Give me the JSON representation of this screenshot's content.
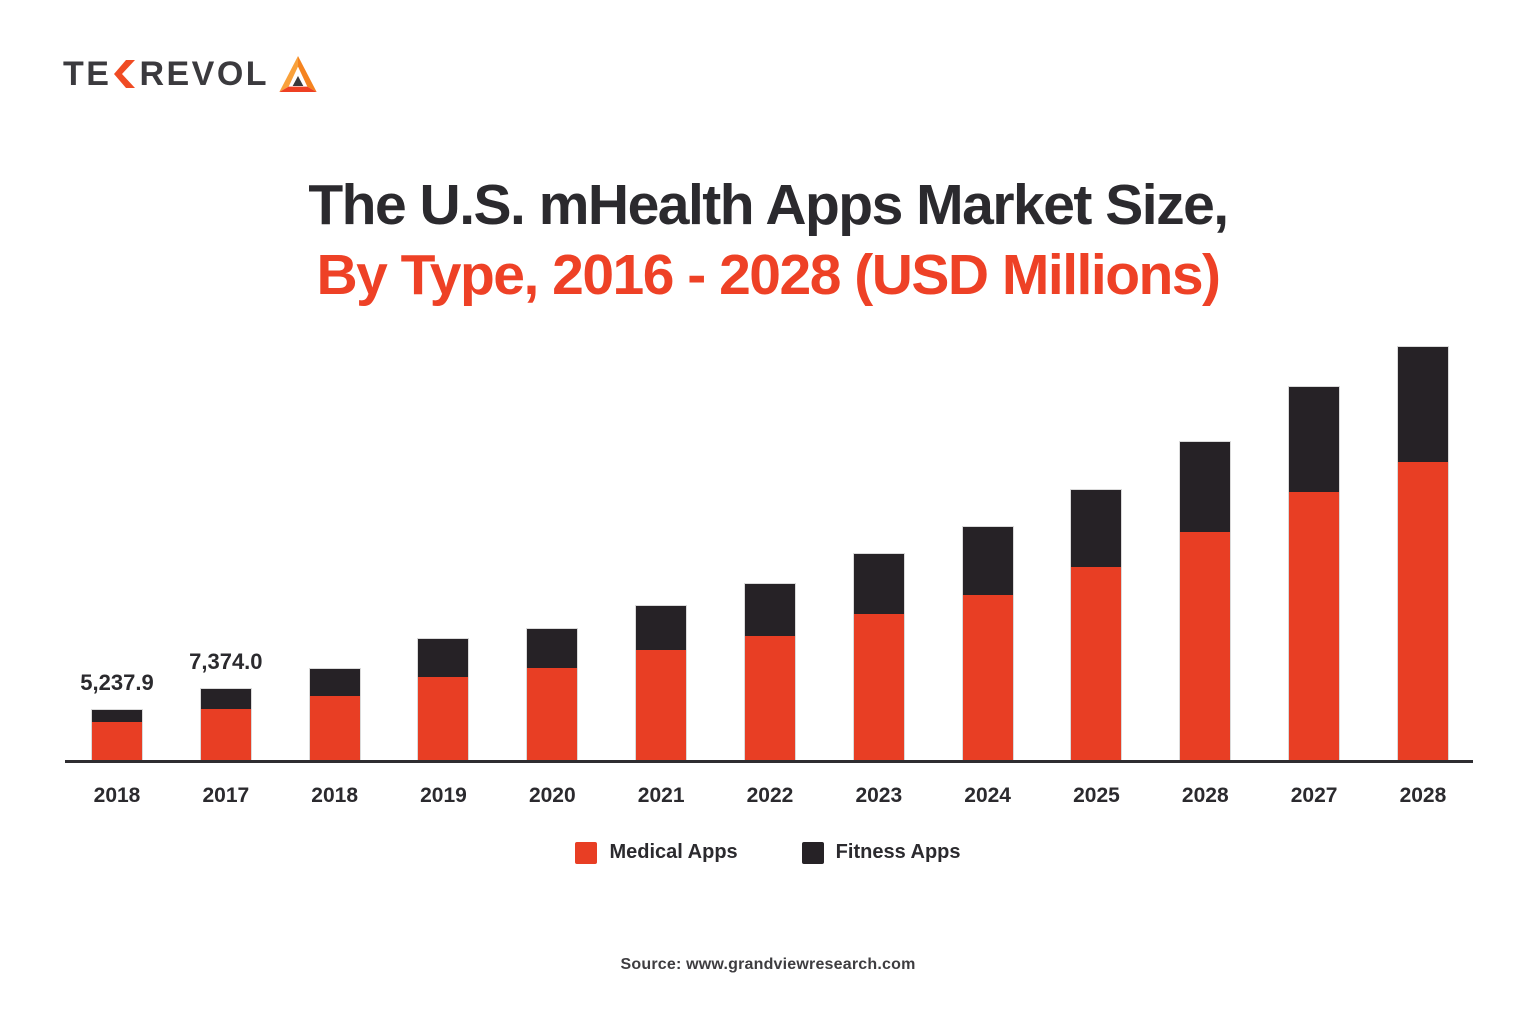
{
  "logo": {
    "wordmark_prefix": "TE",
    "wordmark_suffix": "REVOL",
    "chevron_icon": "chevron-k",
    "triangle_icon": "tekrevol-triangle"
  },
  "title": {
    "line1": "The U.S. mHealth Apps Market Size,",
    "line2": "By Type, 2016 - 2028 (USD Millions)"
  },
  "chart_data": {
    "type": "bar",
    "stacked": true,
    "title": "The U.S. mHealth Apps Market Size, By Type, 2016 - 2028 (USD Millions)",
    "unit": "USD Millions",
    "categories": [
      "2018",
      "2017",
      "2018",
      "2019",
      "2020",
      "2021",
      "2022",
      "2023",
      "2024",
      "2025",
      "2028",
      "2027",
      "2028"
    ],
    "series": [
      {
        "name": "Medical Apps",
        "color": "#E83E24",
        "values": [
          3930,
          5310,
          6690,
          8610,
          9550,
          11420,
          12880,
          15200,
          17210,
          20090,
          23740,
          27870,
          31000
        ]
      },
      {
        "name": "Fitness Apps",
        "color": "#262226",
        "values": [
          1310,
          2064,
          2810,
          4030,
          4120,
          4580,
          5480,
          6250,
          7050,
          8020,
          9340,
          11000,
          12000
        ]
      }
    ],
    "bar_total_labels": [
      "5,237.9",
      "7,374.0",
      "",
      "",
      "",
      "",
      "",
      "",
      "",
      "",
      "",
      "",
      ""
    ],
    "ylim": [
      0,
      43000
    ],
    "gridlines": false,
    "y_axis_shown": false,
    "legend_position": "bottom"
  },
  "legend": {
    "items": [
      {
        "label": "Medical Apps",
        "color": "#E83E24"
      },
      {
        "label": "Fitness Apps",
        "color": "#262226"
      }
    ]
  },
  "source": {
    "text": "Source: www.grandviewresearch.com"
  },
  "colors": {
    "accent_red": "#E83E24",
    "bar_dark": "#262226",
    "title_dark": "#2B2A2E",
    "title_red": "#EE4126",
    "logo_orange": "#F04B23",
    "axis": "#2E2D31"
  }
}
